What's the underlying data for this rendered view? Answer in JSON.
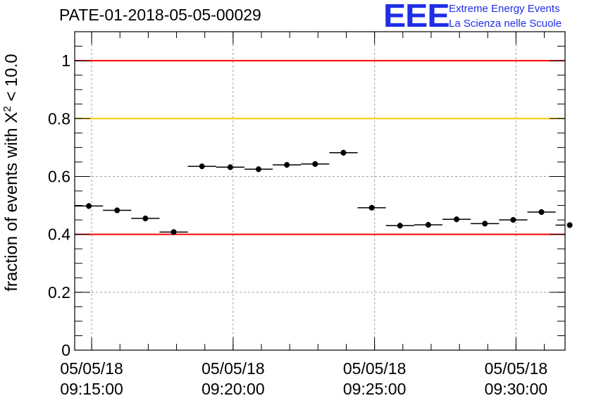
{
  "chart_data": {
    "type": "scatter",
    "title": "PATE-01-2018-05-05-00029",
    "ylabel": {
      "prefix": "fraction of events with ",
      "symbol": "X",
      "superscript": "2",
      "suffix": " < 10.0"
    },
    "xlabel": "",
    "xlim": [
      "09:14:24",
      "09:31:44"
    ],
    "ylim": [
      0,
      1.1
    ],
    "grid": true,
    "x_tick_labels": [
      {
        "date": "05/05/18",
        "time": "09:15:00"
      },
      {
        "date": "05/05/18",
        "time": "09:20:00"
      },
      {
        "date": "05/05/18",
        "time": "09:25:00"
      },
      {
        "date": "05/05/18",
        "time": "09:30:00"
      }
    ],
    "y_tick_labels": [
      "0",
      "0.2",
      "0.4",
      "0.6",
      "0.8",
      "1"
    ],
    "reference_lines": [
      {
        "y": 1.0,
        "color": "#ff0000"
      },
      {
        "y": 0.8,
        "color": "#ffcc00"
      },
      {
        "y": 0.4,
        "color": "#ff0000"
      }
    ],
    "bin_width_minutes": 1,
    "points": [
      {
        "x": "09:14:54",
        "y": 0.498
      },
      {
        "x": "09:15:54",
        "y": 0.483
      },
      {
        "x": "09:16:54",
        "y": 0.455
      },
      {
        "x": "09:17:54",
        "y": 0.408
      },
      {
        "x": "09:18:54",
        "y": 0.635
      },
      {
        "x": "09:19:54",
        "y": 0.632
      },
      {
        "x": "09:20:54",
        "y": 0.625
      },
      {
        "x": "09:21:54",
        "y": 0.64
      },
      {
        "x": "09:22:54",
        "y": 0.643
      },
      {
        "x": "09:23:54",
        "y": 0.682
      },
      {
        "x": "09:24:54",
        "y": 0.492
      },
      {
        "x": "09:25:54",
        "y": 0.43
      },
      {
        "x": "09:26:54",
        "y": 0.433
      },
      {
        "x": "09:27:54",
        "y": 0.452
      },
      {
        "x": "09:28:54",
        "y": 0.437
      },
      {
        "x": "09:29:54",
        "y": 0.45
      },
      {
        "x": "09:30:54",
        "y": 0.477
      },
      {
        "x": "09:31:54",
        "y": 0.432
      }
    ],
    "y_errors": 0.01
  },
  "logo": {
    "mark": "EEE",
    "line1": "Extreme Energy Events",
    "line2": "La Scienza nelle Scuole",
    "color": "#1f2ee6"
  }
}
